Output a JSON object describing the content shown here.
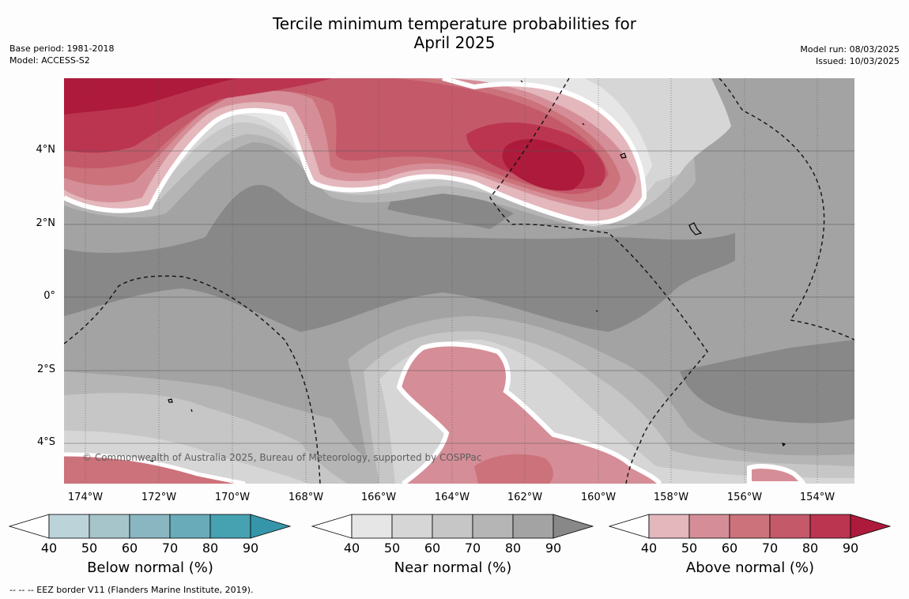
{
  "title_line1": "Tercile minimum temperature probabilities for",
  "title_line2": "April 2025",
  "meta_left": [
    "Base period: 1981-2018",
    "Model: ACCESS-S2"
  ],
  "meta_right": [
    "Model run: 08/03/2025",
    "Issued: 10/03/2025"
  ],
  "lat_labels": [
    "4°N",
    "2°N",
    "0°",
    "2°S",
    "4°S"
  ],
  "lon_labels": [
    "174°W",
    "172°W",
    "170°W",
    "168°W",
    "166°W",
    "164°W",
    "162°W",
    "160°W",
    "158°W",
    "156°W",
    "154°W"
  ],
  "copyright": "© Commonwealth of Australia 2025, Bureau of Meteorology, supported by COSPPac",
  "colorbars": [
    {
      "label": "Below normal (%)",
      "ticks": [
        "40",
        "50",
        "60",
        "70",
        "80",
        "90"
      ],
      "colors": [
        "#ffffff",
        "#bcd3da",
        "#a6c5cb",
        "#8ab6c1",
        "#6aabb9",
        "#46a1b1",
        "#3696a9"
      ]
    },
    {
      "label": "Near normal (%)",
      "ticks": [
        "40",
        "50",
        "60",
        "70",
        "80",
        "90"
      ],
      "colors": [
        "#ffffff",
        "#e6e6e6",
        "#d6d6d6",
        "#c6c6c6",
        "#b5b5b5",
        "#a3a3a3",
        "#888888"
      ]
    },
    {
      "label": "Above normal (%)",
      "ticks": [
        "40",
        "50",
        "60",
        "70",
        "80",
        "90"
      ],
      "colors": [
        "#ffffff",
        "#e3b7bc",
        "#d58e97",
        "#cc727b",
        "#c4596a",
        "#bb3550",
        "#ad1a3b"
      ]
    }
  ],
  "footer": "--  --  -- EEZ border V11 (Flanders Marine Institute, 2019)."
}
